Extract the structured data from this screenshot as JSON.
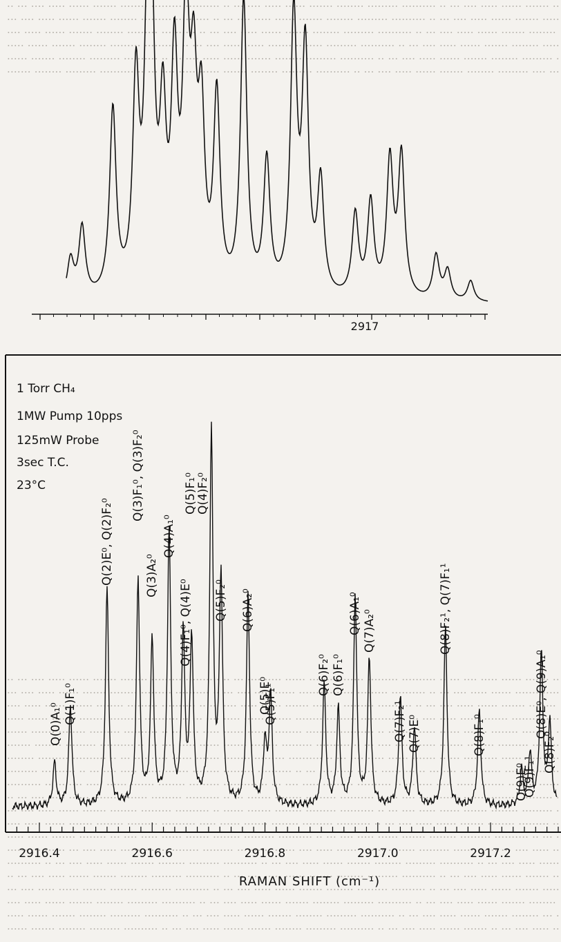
{
  "chart_data": [
    {
      "type": "line",
      "panel": "top-spectrum",
      "x_tick_labels": [
        "2917"
      ],
      "peaks": [
        {
          "x": 0.09,
          "h": 0.13
        },
        {
          "x": 0.12,
          "h": 0.24
        },
        {
          "x": 0.2,
          "h": 0.63
        },
        {
          "x": 0.26,
          "h": 0.7
        },
        {
          "x": 0.29,
          "h": 0.76
        },
        {
          "x": 0.3,
          "h": 0.82
        },
        {
          "x": 0.33,
          "h": 0.56
        },
        {
          "x": 0.36,
          "h": 0.74
        },
        {
          "x": 0.39,
          "h": 0.91
        },
        {
          "x": 0.41,
          "h": 0.62
        },
        {
          "x": 0.43,
          "h": 0.56
        },
        {
          "x": 0.47,
          "h": 0.66
        },
        {
          "x": 0.54,
          "h": 1.0
        },
        {
          "x": 0.6,
          "h": 0.45
        },
        {
          "x": 0.67,
          "h": 0.94
        },
        {
          "x": 0.7,
          "h": 0.82
        },
        {
          "x": 0.74,
          "h": 0.38
        },
        {
          "x": 0.83,
          "h": 0.28
        },
        {
          "x": 0.87,
          "h": 0.32
        },
        {
          "x": 0.92,
          "h": 0.46
        },
        {
          "x": 0.95,
          "h": 0.48
        },
        {
          "x": 1.04,
          "h": 0.15
        },
        {
          "x": 1.07,
          "h": 0.1
        },
        {
          "x": 1.13,
          "h": 0.07
        }
      ]
    },
    {
      "type": "line",
      "panel": "main-spectrum",
      "xlabel": "RAMAN SHIFT (cm⁻¹)",
      "x_ticks": [
        2916.4,
        2916.6,
        2916.8,
        2917.0,
        2917.2
      ],
      "x_tick_labels": [
        "2916.4",
        "2916.6",
        "2916.8",
        "2917.0",
        "2917.2"
      ],
      "xlim": [
        2916.34,
        2917.32
      ],
      "peaks": [
        {
          "x": 2916.427,
          "h": 0.1
        },
        {
          "x": 2916.455,
          "h": 0.23
        },
        {
          "x": 2916.52,
          "h": 0.5
        },
        {
          "x": 2916.575,
          "h": 0.52
        },
        {
          "x": 2916.6,
          "h": 0.38
        },
        {
          "x": 2916.63,
          "h": 0.63
        },
        {
          "x": 2916.655,
          "h": 0.39
        },
        {
          "x": 2916.67,
          "h": 0.38
        },
        {
          "x": 2916.705,
          "h": 0.86
        },
        {
          "x": 2916.722,
          "h": 0.52
        },
        {
          "x": 2916.77,
          "h": 0.48
        },
        {
          "x": 2916.8,
          "h": 0.14
        },
        {
          "x": 2916.81,
          "h": 0.25
        },
        {
          "x": 2916.905,
          "h": 0.28
        },
        {
          "x": 2916.93,
          "h": 0.22
        },
        {
          "x": 2916.96,
          "h": 0.48
        },
        {
          "x": 2916.985,
          "h": 0.34
        },
        {
          "x": 2917.04,
          "h": 0.25
        },
        {
          "x": 2917.065,
          "h": 0.18
        },
        {
          "x": 2917.12,
          "h": 0.41
        },
        {
          "x": 2917.18,
          "h": 0.22
        },
        {
          "x": 2917.255,
          "h": 0.08
        },
        {
          "x": 2917.27,
          "h": 0.12
        },
        {
          "x": 2917.29,
          "h": 0.35
        },
        {
          "x": 2917.305,
          "h": 0.19
        }
      ],
      "conditions": [
        "1 Torr  CH₄",
        "1MW Pump  10pps",
        "125mW Probe",
        "3sec  T.C.",
        "23°C"
      ],
      "peak_labels": [
        {
          "text": "Q(0)A₁⁰",
          "x": 2916.43
        },
        {
          "text": "Q(1)F₁⁰",
          "x": 2916.455
        },
        {
          "text": "Q(2)E⁰, Q(2)F₂⁰",
          "x": 2916.52
        },
        {
          "text": "Q(3)F₁⁰, Q(3)F₂⁰",
          "x": 2916.575
        },
        {
          "text": "Q(3)A₂⁰",
          "x": 2916.6
        },
        {
          "text": "Q(4)A₁⁰",
          "x": 2916.63
        },
        {
          "text": "Q(4)F₁⁰, Q(4)E⁰",
          "x": 2916.66
        },
        {
          "text": "Q(5)F₁⁰",
          "x": 2916.705
        },
        {
          "text": "Q(4)F₂⁰",
          "x": 2916.705
        },
        {
          "text": "Q(5)F₂⁰",
          "x": 2916.722
        },
        {
          "text": "Q(6)A₂⁰",
          "x": 2916.77
        },
        {
          "text": "Q(5)E⁰",
          "x": 2916.8
        },
        {
          "text": "Q(5)F₁¹",
          "x": 2916.81
        },
        {
          "text": "Q(6)F₂⁰",
          "x": 2916.905
        },
        {
          "text": "Q(6)F₁⁰",
          "x": 2916.93
        },
        {
          "text": "Q(6)A₁⁰",
          "x": 2916.96
        },
        {
          "text": "Q(7)A₂⁰",
          "x": 2916.985
        },
        {
          "text": "Q(7)F₂¹",
          "x": 2917.04
        },
        {
          "text": "Q(7)E⁰",
          "x": 2917.065
        },
        {
          "text": "Q(8)F₂¹, Q(7)F₁¹",
          "x": 2917.12
        },
        {
          "text": "Q(8)F₁⁰",
          "x": 2917.18
        },
        {
          "text": "Q(9)E⁰",
          "x": 2917.255
        },
        {
          "text": "Q(9)F₁¹",
          "x": 2917.27
        },
        {
          "text": "Q(8)E⁰, Q(9)A₁⁰",
          "x": 2917.29
        },
        {
          "text": "Q(8)F₂⁰",
          "x": 2917.305
        }
      ]
    }
  ]
}
